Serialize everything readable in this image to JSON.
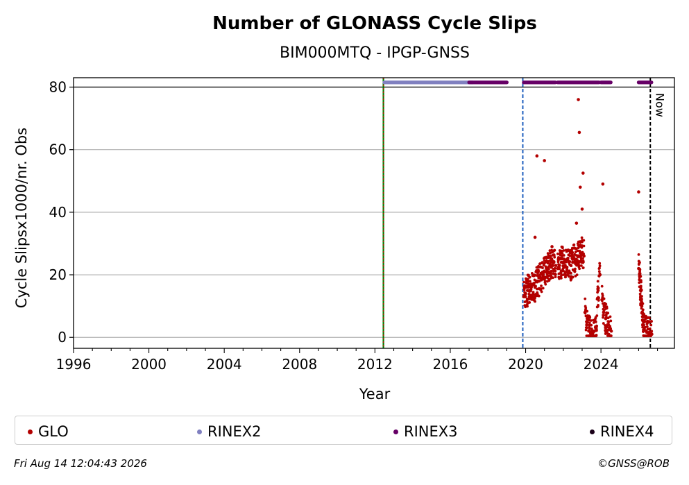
{
  "title": "Number of GLONASS Cycle Slips",
  "subtitle": "BIM000MTQ - IPGP-GNSS",
  "chart_data": {
    "type": "scatter",
    "xlabel": "Year",
    "ylabel": "Cycle Slipsx1000/nr. Obs",
    "xlim": [
      1996,
      2027.9
    ],
    "ylim": [
      -3.5,
      83
    ],
    "xticks": [
      1996,
      2000,
      2004,
      2008,
      2012,
      2016,
      2020,
      2024
    ],
    "yticks": [
      0,
      20,
      40,
      60,
      80
    ],
    "grid": "horizontal",
    "legend_placement": "bottom",
    "vlines": [
      {
        "x": 2012.45,
        "style": "solid-dotted",
        "colors": [
          "#008000",
          "#cc0000"
        ]
      },
      {
        "x": 2019.85,
        "style": "dashed",
        "colors": [
          "#1f5fbf"
        ]
      },
      {
        "x": 2026.62,
        "style": "dashed",
        "colors": [
          "#000000"
        ],
        "label": "Now"
      }
    ],
    "rinex_bars": [
      {
        "series": "RINEX2",
        "y": 81.5,
        "ranges": [
          [
            2012.5,
            2017.2
          ]
        ]
      },
      {
        "series": "RINEX3",
        "y": 81.5,
        "ranges": [
          [
            2017.0,
            2019.0
          ],
          [
            2019.9,
            2021.6
          ],
          [
            2021.7,
            2023.9
          ],
          [
            2024.0,
            2024.55
          ],
          [
            2026.0,
            2026.7
          ]
        ]
      }
    ],
    "series": [
      {
        "name": "GLO",
        "segments": [
          {
            "x": [
              2019.9,
              2020.0,
              2020.1,
              2020.2,
              2020.3,
              2020.4,
              2020.5,
              2020.6,
              2020.7,
              2020.8,
              2020.9,
              2021.0,
              2021.1,
              2021.2,
              2021.3,
              2021.4,
              2021.5,
              2021.6
            ],
            "y": [
              13,
              14,
              15,
              15,
              16,
              17,
              16,
              18,
              18,
              19,
              20,
              21,
              22,
              22,
              23,
              23,
              24,
              23
            ]
          },
          {
            "x": [
              2021.7,
              2021.8,
              2021.9,
              2022.0,
              2022.1,
              2022.2,
              2022.3,
              2022.4,
              2022.5,
              2022.6,
              2022.7,
              2022.8,
              2022.9,
              2023.0,
              2023.1
            ],
            "y": [
              22,
              23,
              24,
              24,
              23,
              25,
              24,
              23,
              24,
              25,
              24,
              26,
              27,
              27,
              26
            ]
          },
          {
            "x": [
              2023.15,
              2023.25,
              2023.35,
              2023.45,
              2023.55,
              2023.65,
              2023.75,
              2023.85,
              2023.95
            ],
            "y": [
              8,
              4,
              2,
              1.5,
              1,
              2,
              3,
              15,
              20
            ]
          },
          {
            "x": [
              2024.05,
              2024.15,
              2024.25,
              2024.35,
              2024.45,
              2024.55
            ],
            "y": [
              12,
              8,
              6,
              4,
              3,
              2
            ]
          },
          {
            "x": [
              2026.0,
              2026.05,
              2026.1,
              2026.15,
              2026.2,
              2026.25,
              2026.3,
              2026.4,
              2026.5,
              2026.6,
              2026.7
            ],
            "y": [
              22,
              20,
              15,
              12,
              8,
              5,
              3,
              2,
              1.5,
              1.2,
              1
            ]
          }
        ],
        "outliers": {
          "x": [
            2020.6,
            2021.0,
            2020.5,
            2022.8,
            2022.85,
            2023.05,
            2022.9,
            2023.0,
            2024.1,
            2026.0,
            2022.7,
            2021.4
          ],
          "y": [
            58,
            56.5,
            32,
            76,
            65.5,
            52.5,
            48,
            41,
            49,
            46.5,
            36.5,
            29
          ]
        }
      },
      {
        "name": "RINEX2"
      },
      {
        "name": "RINEX3"
      },
      {
        "name": "RINEX4"
      }
    ]
  },
  "colors": {
    "GLO": "#b30000",
    "RINEX2": "#8080c0",
    "RINEX3": "#660066",
    "RINEX4": "#1a0018"
  },
  "now_label": "Now",
  "footer": {
    "timestamp": "Fri Aug 14 12:04:43 2026",
    "credit": "©GNSS@ROB"
  }
}
